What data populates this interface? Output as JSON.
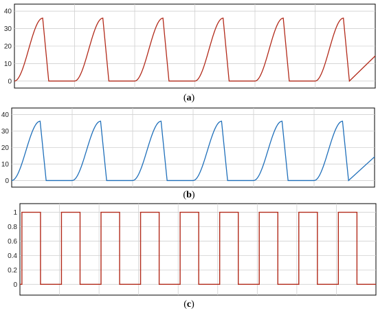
{
  "chart_data": [
    {
      "type": "line",
      "panel_label": "a",
      "color": "#b22a1a",
      "ylim": [
        -4,
        44
      ],
      "yticks": [
        0,
        10,
        20,
        30,
        40
      ],
      "xlim": [
        0,
        6.0
      ],
      "grid": true,
      "series": [
        {
          "shape": "pulse",
          "peak": 36,
          "period": 1.0,
          "rise_start": 0.0,
          "peak_at": 0.47,
          "fall_end": 0.57,
          "count": 6
        }
      ]
    },
    {
      "type": "line",
      "panel_label": "b",
      "color": "#1f6fba",
      "ylim": [
        -4,
        44
      ],
      "yticks": [
        0,
        10,
        20,
        30,
        40
      ],
      "xlim": [
        0,
        6.0
      ],
      "grid": true,
      "series": [
        {
          "shape": "pulse",
          "peak": 36,
          "period": 1.0,
          "rise_start": 0.0,
          "peak_at": 0.47,
          "fall_end": 0.57,
          "count": 6
        }
      ]
    },
    {
      "type": "line",
      "panel_label": "c",
      "color": "#b22a1a",
      "ylim": [
        -0.15,
        1.12
      ],
      "yticks": [
        0,
        0.2,
        0.4,
        0.6,
        0.8,
        1
      ],
      "xlim": [
        0,
        9.0
      ],
      "grid": true,
      "series": [
        {
          "shape": "square",
          "high": 1,
          "low": 0,
          "period": 1.0,
          "high_start": 0.05,
          "high_end": 0.52,
          "count": 9
        }
      ]
    }
  ],
  "captions": [
    {
      "open": "(",
      "letter": "a",
      "close": ")"
    },
    {
      "open": "(",
      "letter": "b",
      "close": ")"
    },
    {
      "open": "(",
      "letter": "c",
      "close": ")"
    }
  ]
}
